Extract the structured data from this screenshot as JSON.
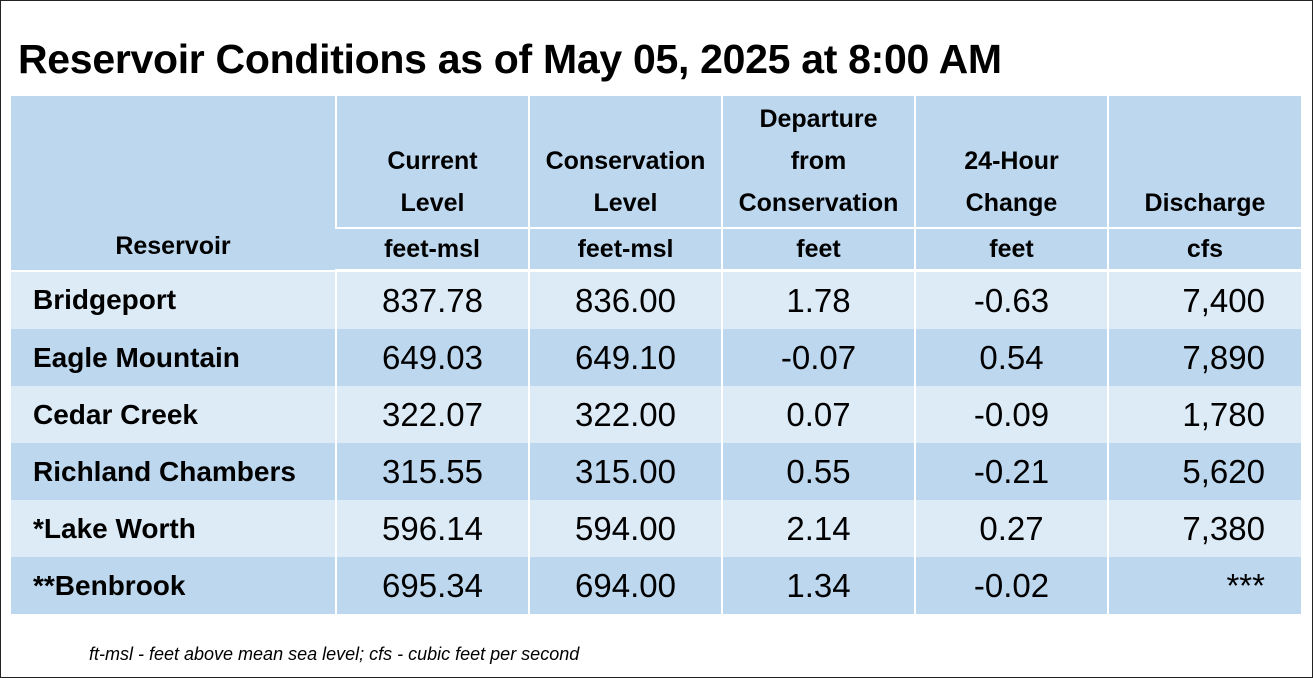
{
  "title": "Reservoir Conditions as of May 05, 2025 at 8:00 AM",
  "table": {
    "headers": [
      {
        "lines": [
          "Reservoir"
        ],
        "unit": ""
      },
      {
        "lines": [
          "Current",
          "Level"
        ],
        "unit": "feet-msl"
      },
      {
        "lines": [
          "Conservation",
          "Level"
        ],
        "unit": "feet-msl"
      },
      {
        "lines": [
          "Departure",
          "from",
          "Conservation"
        ],
        "unit": "feet"
      },
      {
        "lines": [
          "24-Hour",
          "Change"
        ],
        "unit": "feet"
      },
      {
        "lines": [
          "Discharge"
        ],
        "unit": "cfs"
      }
    ],
    "rows": [
      {
        "name": "Bridgeport",
        "current": "837.78",
        "conservation": "836.00",
        "departure": "1.78",
        "change": "-0.63",
        "discharge": "7,400"
      },
      {
        "name": "Eagle Mountain",
        "current": "649.03",
        "conservation": "649.10",
        "departure": "-0.07",
        "change": "0.54",
        "discharge": "7,890"
      },
      {
        "name": "Cedar Creek",
        "current": "322.07",
        "conservation": "322.00",
        "departure": "0.07",
        "change": "-0.09",
        "discharge": "1,780"
      },
      {
        "name": "Richland Chambers",
        "current": "315.55",
        "conservation": "315.00",
        "departure": "0.55",
        "change": "-0.21",
        "discharge": "5,620"
      },
      {
        "name": "*Lake Worth",
        "current": "596.14",
        "conservation": "594.00",
        "departure": "2.14",
        "change": "0.27",
        "discharge": "7,380"
      },
      {
        "name": "**Benbrook",
        "current": "695.34",
        "conservation": "694.00",
        "departure": "1.34",
        "change": "-0.02",
        "discharge": "***"
      }
    ]
  },
  "footnote": "ft-msl - feet above mean sea level; cfs - cubic feet per second",
  "colors": {
    "header_bg": "#bdd7ee",
    "row_light": "#ddebf7",
    "row_dark": "#bdd7ee"
  }
}
